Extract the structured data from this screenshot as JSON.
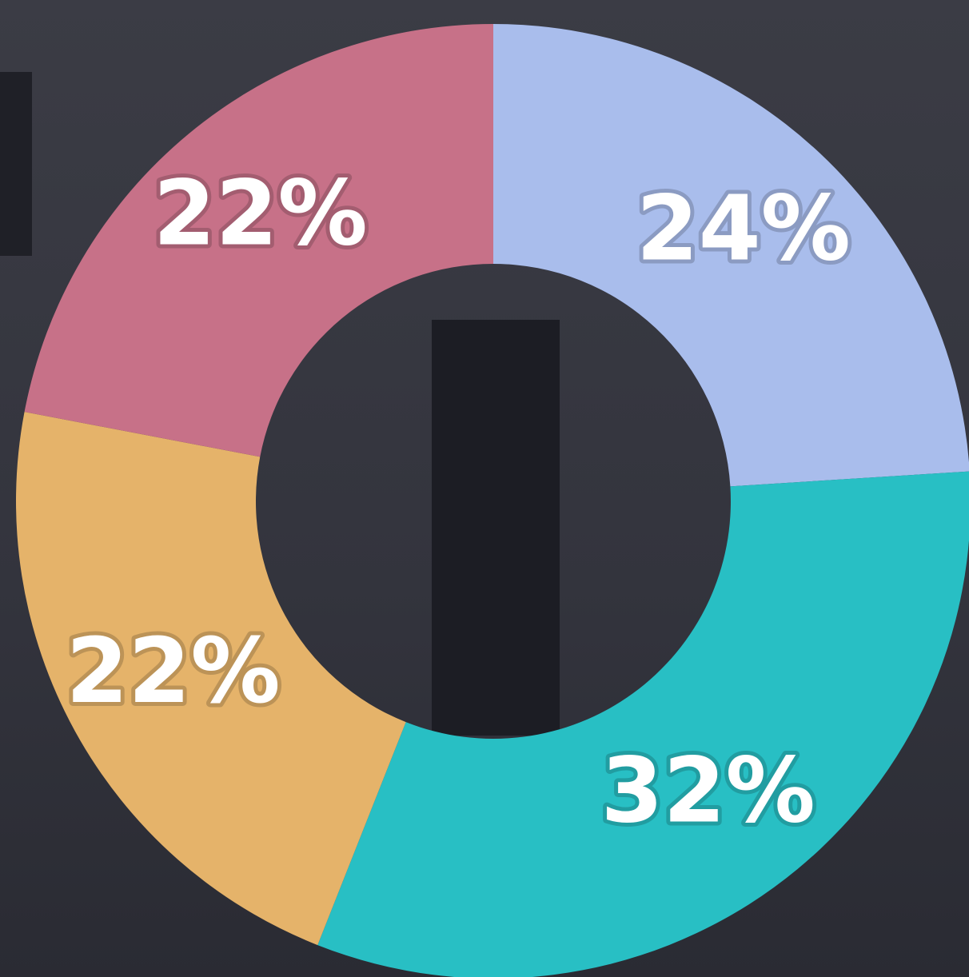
{
  "chart_data": {
    "type": "donut",
    "values": [
      24,
      32,
      22,
      22
    ],
    "value_labels": [
      "24%",
      "32%",
      "22%",
      "22%"
    ],
    "colors": [
      "#a9bdec",
      "#28bfc4",
      "#e5b36a",
      "#c77188"
    ]
  }
}
